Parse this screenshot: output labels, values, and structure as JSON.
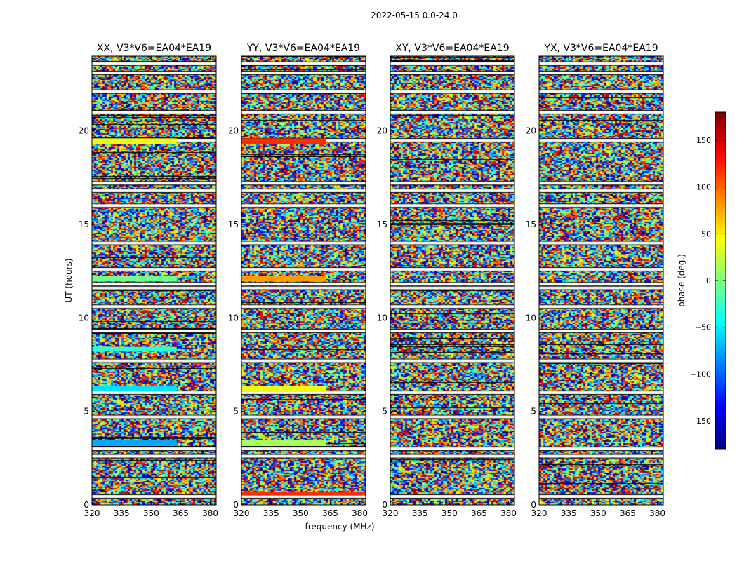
{
  "figure_title": "2022-05-15 0.0-24.0",
  "chart_data": {
    "type": "heatmap",
    "title": "2022-05-15 0.0-24.0",
    "xlabel": "frequency (MHz)",
    "ylabel": "UT (hours)",
    "xlim": [
      320,
      383
    ],
    "ylim": [
      0,
      24
    ],
    "xticks": [
      320,
      335,
      350,
      365,
      380
    ],
    "yticks": [
      0,
      5,
      10,
      15,
      20
    ],
    "colormap": "jet",
    "colorbar": {
      "label": "phase (deg.)",
      "range": [
        -180,
        180
      ],
      "ticks": [
        -150,
        -100,
        -50,
        0,
        50,
        100,
        150
      ],
      "tick_labels": [
        "−150",
        "−100",
        "−50",
        "0",
        "50",
        "100",
        "150"
      ]
    },
    "panels": [
      {
        "name": "XX",
        "title": "XX, V3*V6=EA04*EA19"
      },
      {
        "name": "YY",
        "title": "YY, V3*V6=EA04*EA19"
      },
      {
        "name": "XY",
        "title": "XY, V3*V6=EA04*EA19"
      },
      {
        "name": "YX",
        "title": "YX, V3*V6=EA04*EA19"
      }
    ],
    "flagged_gaps_ut_hours": [
      0.45,
      2.6,
      3.0,
      4.7,
      6.0,
      7.7,
      9.3,
      10.6,
      11.6,
      11.8,
      12.6,
      14.0,
      16.0,
      16.8,
      17.2,
      19.5,
      21.0,
      22.1,
      23.1,
      23.6
    ],
    "coherent_bands": [
      {
        "panel": "XX",
        "ut_start": 19.3,
        "ut_end": 19.6,
        "freq_end": 363,
        "phase": 40
      },
      {
        "panel": "XX",
        "ut_start": 11.95,
        "ut_end": 12.25,
        "freq_end": 363,
        "phase": -5
      },
      {
        "panel": "XX",
        "ut_start": 8.2,
        "ut_end": 8.45,
        "freq_end": 363,
        "phase": -30
      },
      {
        "panel": "XX",
        "ut_start": 6.1,
        "ut_end": 6.35,
        "freq_end": 363,
        "phase": -55
      },
      {
        "panel": "XX",
        "ut_start": 3.15,
        "ut_end": 3.45,
        "freq_end": 363,
        "phase": -75
      },
      {
        "panel": "YY",
        "ut_start": 19.3,
        "ut_end": 19.6,
        "freq_end": 363,
        "phase": 120
      },
      {
        "panel": "YY",
        "ut_start": 11.95,
        "ut_end": 12.25,
        "freq_end": 363,
        "phase": 80
      },
      {
        "panel": "YY",
        "ut_start": 6.1,
        "ut_end": 6.35,
        "freq_end": 363,
        "phase": 40
      },
      {
        "panel": "YY",
        "ut_start": 3.15,
        "ut_end": 3.45,
        "freq_end": 363,
        "phase": 15
      },
      {
        "panel": "YY",
        "ut_start": 0.5,
        "ut_end": 0.7,
        "freq_end": 383,
        "phase": 120
      }
    ]
  }
}
